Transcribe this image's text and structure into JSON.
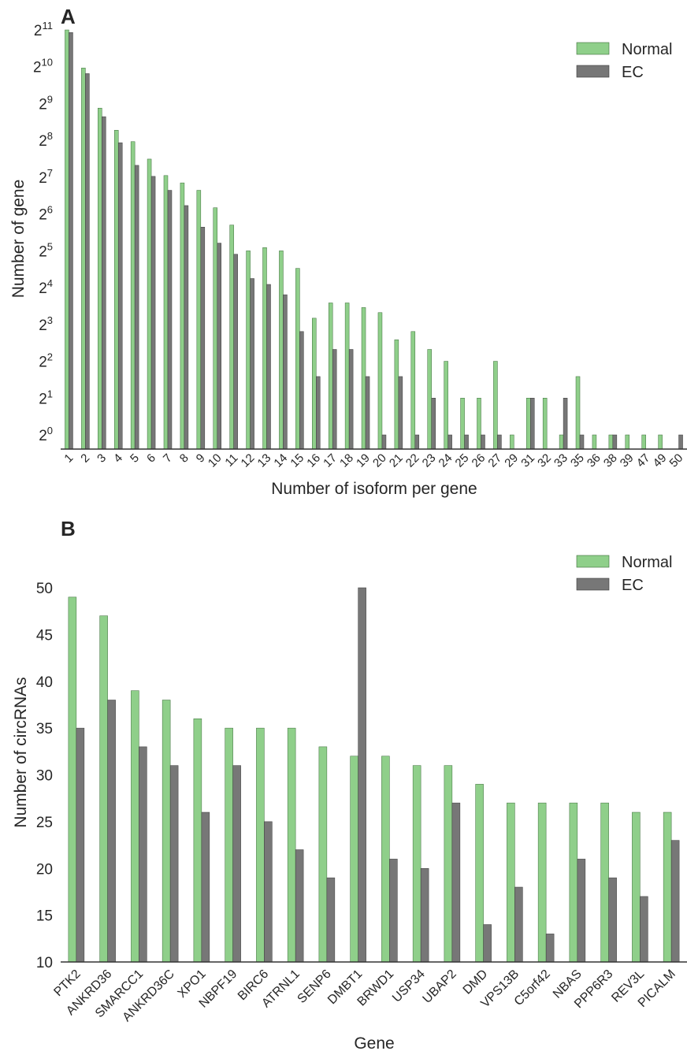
{
  "colors": {
    "normal": "#8fcf8a",
    "ec": "#777777",
    "bar_edge": "#3a6b38",
    "axis": "#333333"
  },
  "chart_data": [
    {
      "panel_label": "A",
      "type": "bar",
      "xlabel": "Number of isoform per gene",
      "ylabel": "Number of gene",
      "y_scale": "log2",
      "y_ticks": [
        {
          "base": "2",
          "exp": "0"
        },
        {
          "base": "2",
          "exp": "1"
        },
        {
          "base": "2",
          "exp": "2"
        },
        {
          "base": "2",
          "exp": "3"
        },
        {
          "base": "2",
          "exp": "4"
        },
        {
          "base": "2",
          "exp": "5"
        },
        {
          "base": "2",
          "exp": "6"
        },
        {
          "base": "2",
          "exp": "7"
        },
        {
          "base": "2",
          "exp": "8"
        },
        {
          "base": "2",
          "exp": "9"
        },
        {
          "base": "2",
          "exp": "10"
        },
        {
          "base": "2",
          "exp": "11"
        }
      ],
      "ylim": [
        1,
        2048
      ],
      "legend": "top-right",
      "grid": false,
      "categories": [
        "1",
        "2",
        "3",
        "4",
        "5",
        "6",
        "7",
        "8",
        "9",
        "10",
        "11",
        "12",
        "13",
        "14",
        "15",
        "16",
        "17",
        "18",
        "19",
        "20",
        "21",
        "22",
        "23",
        "24",
        "25",
        "26",
        "27",
        "29",
        "31",
        "32",
        "33",
        "35",
        "36",
        "38",
        "39",
        "47",
        "49",
        "50"
      ],
      "series": [
        {
          "name": "Normal",
          "values": [
            2048,
            1000,
            470,
            310,
            250,
            180,
            132,
            115,
            100,
            72,
            52,
            32,
            34,
            32,
            23,
            9,
            12,
            12,
            11,
            10,
            6,
            7,
            5,
            4,
            2,
            2,
            4,
            1,
            2,
            2,
            1,
            3,
            1,
            1,
            1,
            1,
            1,
            0
          ]
        },
        {
          "name": "EC",
          "values": [
            1950,
            900,
            400,
            245,
            160,
            130,
            100,
            75,
            50,
            37,
            30,
            19,
            17,
            14,
            7,
            3,
            5,
            5,
            3,
            1,
            3,
            1,
            2,
            1,
            1,
            1,
            1,
            0,
            2,
            0,
            2,
            1,
            0,
            1,
            0,
            0,
            0,
            1
          ]
        }
      ]
    },
    {
      "panel_label": "B",
      "type": "bar",
      "xlabel": "Gene",
      "ylabel": "Number of circRNAs",
      "ylim": [
        10,
        50
      ],
      "y_ticks": [
        "10",
        "15",
        "20",
        "25",
        "30",
        "35",
        "40",
        "45",
        "50"
      ],
      "legend": "top-right",
      "grid": false,
      "categories": [
        "PTK2",
        "ANKRD36",
        "SMARCC1",
        "ANKRD36C",
        "XPO1",
        "NBPF19",
        "BIRC6",
        "ATRNL1",
        "SENP6",
        "DMBT1",
        "BRWD1",
        "USP34",
        "UBAP2",
        "DMD",
        "VPS13B",
        "C5orf42",
        "NBAS",
        "PPP6R3",
        "REV3L",
        "PICALM"
      ],
      "series": [
        {
          "name": "Normal",
          "values": [
            49,
            47,
            39,
            38,
            36,
            35,
            35,
            35,
            33,
            32,
            32,
            31,
            31,
            29,
            27,
            27,
            27,
            27,
            26,
            26
          ]
        },
        {
          "name": "EC",
          "values": [
            35,
            38,
            33,
            31,
            26,
            31,
            25,
            22,
            19,
            50,
            21,
            20,
            27,
            14,
            18,
            13,
            21,
            19,
            17,
            23
          ]
        }
      ]
    }
  ]
}
